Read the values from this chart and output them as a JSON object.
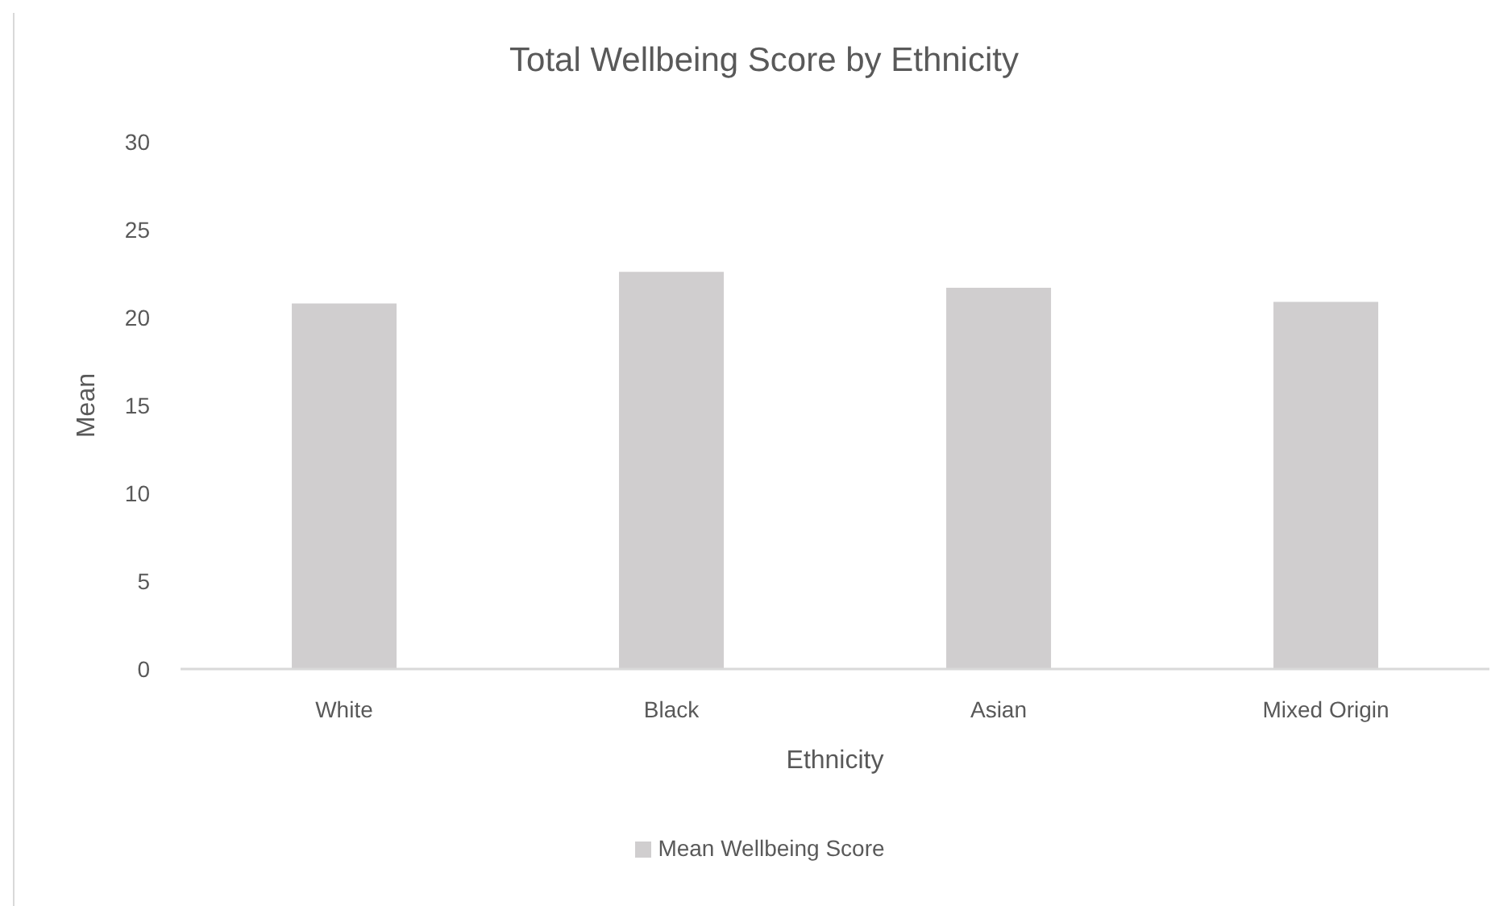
{
  "chart_data": {
    "type": "bar",
    "title": "Total Wellbeing Score by Ethnicity",
    "xlabel": "Ethnicity",
    "ylabel": "Mean",
    "categories": [
      "White",
      "Black",
      "Asian",
      "Mixed Origin"
    ],
    "series": [
      {
        "name": "Mean Wellbeing Score",
        "color": "#d0cecf",
        "values": [
          20.8,
          22.6,
          21.7,
          20.9
        ]
      }
    ],
    "ylim": [
      0,
      30
    ],
    "yticks": [
      0,
      5,
      10,
      15,
      20,
      25,
      30
    ],
    "legend": "bottom"
  }
}
